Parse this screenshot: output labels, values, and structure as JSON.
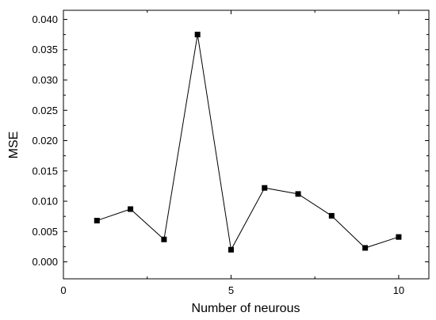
{
  "chart_data": {
    "type": "line",
    "title": "",
    "xlabel": "Number of neurous",
    "ylabel": "MSE",
    "xlim": [
      0,
      10.9
    ],
    "ylim": [
      -0.0028,
      0.0415
    ],
    "xticks": [
      0,
      5,
      10
    ],
    "xtick_labels": [
      "0",
      "5",
      "10"
    ],
    "yticks": [
      0.0,
      0.005,
      0.01,
      0.015,
      0.02,
      0.025,
      0.03,
      0.035,
      0.04
    ],
    "ytick_labels": [
      "0.000",
      "0.005",
      "0.010",
      "0.015",
      "0.020",
      "0.025",
      "0.030",
      "0.035",
      "0.040"
    ],
    "grid": false,
    "legend": "none",
    "series": [
      {
        "x": [
          1,
          2,
          3,
          4,
          5,
          6,
          7,
          8,
          9,
          10
        ],
        "values": [
          0.0068,
          0.0087,
          0.0037,
          0.0375,
          0.002,
          0.0122,
          0.0112,
          0.0076,
          0.0023,
          0.0041
        ],
        "color": "#000000",
        "marker": "square"
      }
    ]
  }
}
